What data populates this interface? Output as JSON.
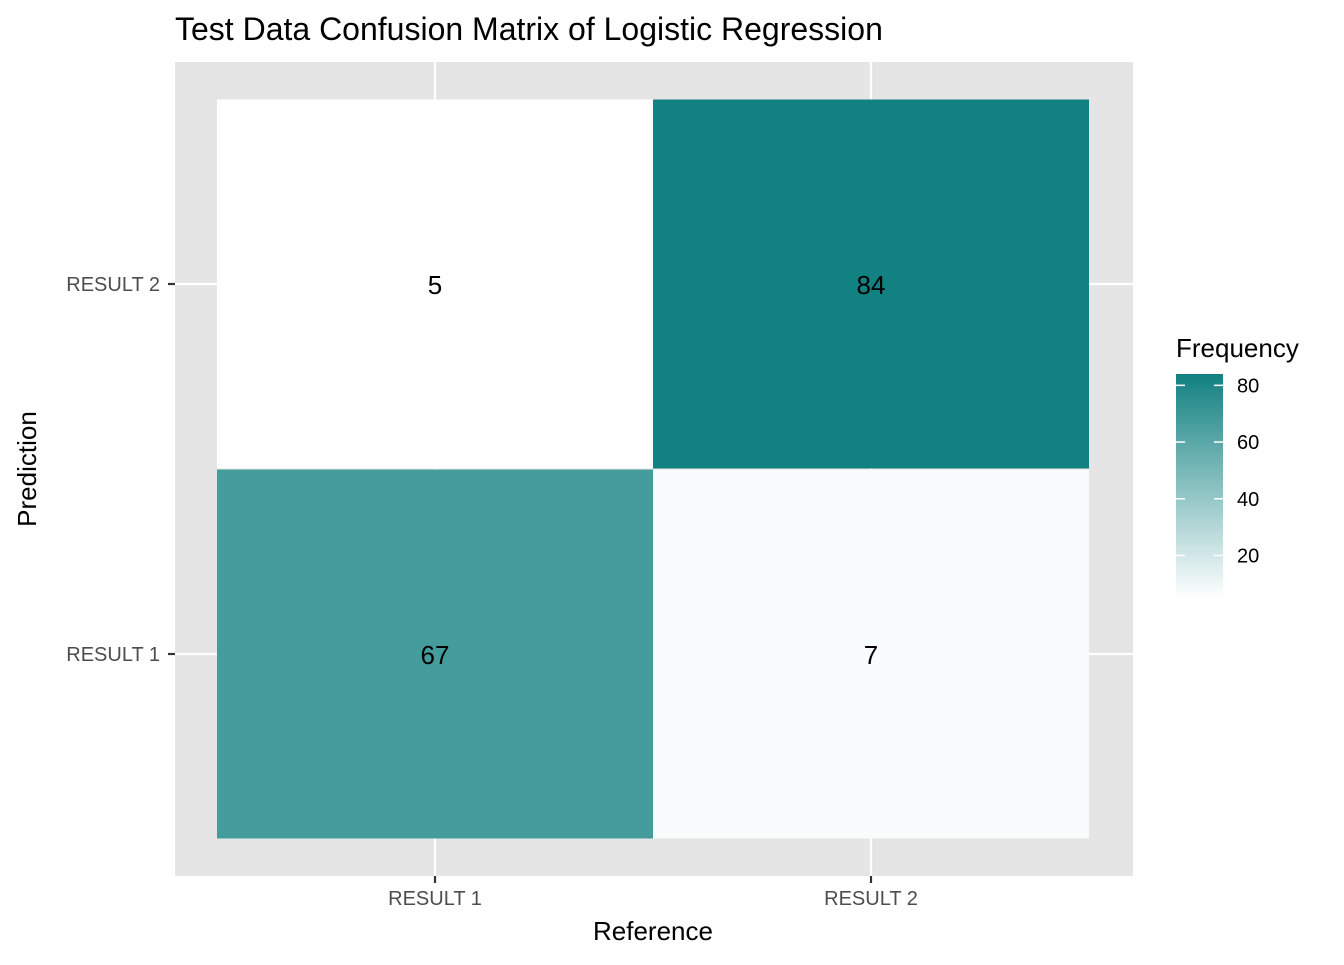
{
  "chart_data": {
    "type": "heatmap",
    "title": "Test Data Confusion Matrix of Logistic Regression",
    "xlabel": "Reference",
    "ylabel": "Prediction",
    "x_categories": [
      "RESULT 1",
      "RESULT 2"
    ],
    "y_categories": [
      "RESULT 1",
      "RESULT 2"
    ],
    "cells": [
      {
        "reference": "RESULT 1",
        "prediction": "RESULT 1",
        "value": 67,
        "label": "67"
      },
      {
        "reference": "RESULT 2",
        "prediction": "RESULT 1",
        "value": 7,
        "label": "7"
      },
      {
        "reference": "RESULT 1",
        "prediction": "RESULT 2",
        "value": 5,
        "label": "5"
      },
      {
        "reference": "RESULT 2",
        "prediction": "RESULT 2",
        "value": 84,
        "label": "84"
      }
    ],
    "legend": {
      "title": "Frequency",
      "position": "right",
      "ticks": [
        20,
        40,
        60,
        80
      ],
      "tick_labels": [
        "20",
        "40",
        "60",
        "80"
      ],
      "range": [
        5,
        84
      ],
      "low_color": "#ffffff",
      "high_color": "#128181"
    },
    "panel_background": "#e5e5e5",
    "gridline_color": "#ffffff",
    "grid": true
  }
}
